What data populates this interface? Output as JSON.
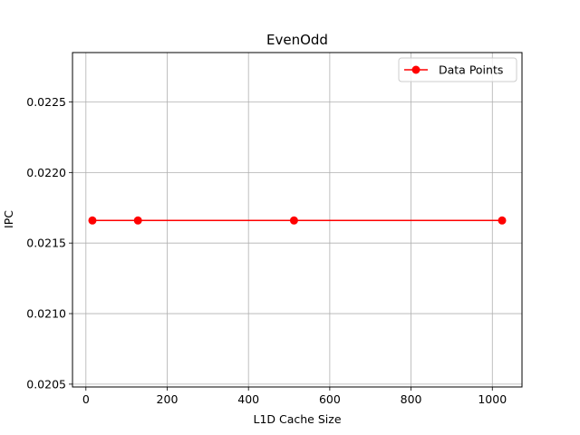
{
  "chart_data": {
    "type": "line",
    "title": "EvenOdd",
    "xlabel": "L1D Cache Size",
    "ylabel": "IPC",
    "xlim": [
      -33,
      1073
    ],
    "ylim": [
      0.02048,
      0.02285
    ],
    "xticks": [
      0,
      200,
      400,
      600,
      800,
      1000
    ],
    "yticks": [
      0.0205,
      0.021,
      0.0215,
      0.022,
      0.0225
    ],
    "xtick_labels": [
      "0",
      "200",
      "400",
      "600",
      "800",
      "1000"
    ],
    "ytick_labels": [
      "0.0205",
      "0.0210",
      "0.0215",
      "0.0220",
      "0.0225"
    ],
    "grid": true,
    "legend_position": "top-right",
    "series": [
      {
        "name": "Data Points",
        "color": "#ff0000",
        "marker": "circle",
        "x": [
          16,
          128,
          512,
          1024
        ],
        "y": [
          0.02166,
          0.02166,
          0.02166,
          0.02166
        ]
      }
    ]
  }
}
